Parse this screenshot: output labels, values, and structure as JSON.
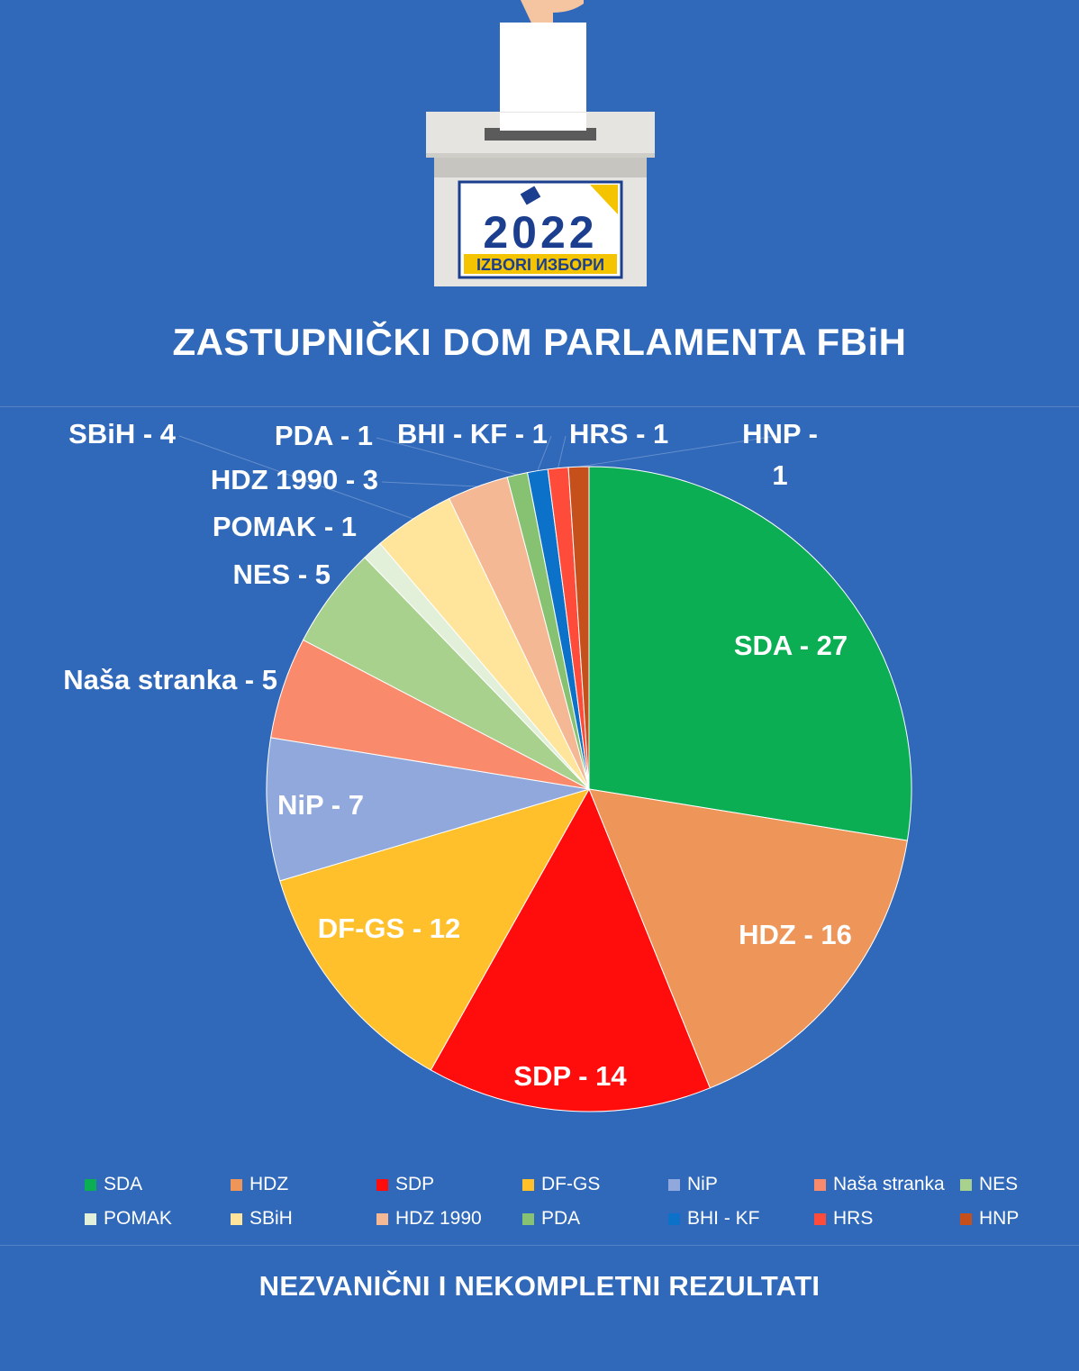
{
  "logo": {
    "year": "2022",
    "caption": "IZBORI ИЗБОРИ"
  },
  "title": "ZASTUPNIČKI DOM PARLAMENTA FBiH",
  "footer": "NEZVANIČNI I NEKOMPLETNI REZULTATI",
  "chart_data": {
    "type": "pie",
    "title": "ZASTUPNIČKI DOM PARLAMENTA FBiH",
    "legend_position": "bottom",
    "categories": [
      "SDA",
      "HDZ",
      "SDP",
      "DF-GS",
      "NiP",
      "Naša stranka",
      "NES",
      "POMAK",
      "SBiH",
      "HDZ 1990",
      "PDA",
      "BHI - KF",
      "HRS",
      "HNP"
    ],
    "values": [
      27,
      16,
      14,
      12,
      7,
      5,
      5,
      1,
      4,
      3,
      1,
      1,
      1,
      1
    ],
    "labels": [
      "SDA - 27",
      "HDZ - 16",
      "SDP - 14",
      "DF-GS - 12",
      "NiP - 7",
      "Naša stranka - 5",
      "NES - 5",
      "POMAK - 1",
      "SBiH - 4",
      "HDZ 1990 - 3",
      "PDA - 1",
      "BHI - KF - 1",
      "HRS - 1",
      "HNP - 1"
    ],
    "colors": [
      "#0BAE53",
      "#EE955A",
      "#FF0D0D",
      "#FFC02C",
      "#90A8DB",
      "#FA8A6C",
      "#A9D18E",
      "#E2F0D9",
      "#FFE59B",
      "#F5B895",
      "#86C272",
      "#0B71C9",
      "#FF4B3A",
      "#C5501B"
    ]
  }
}
